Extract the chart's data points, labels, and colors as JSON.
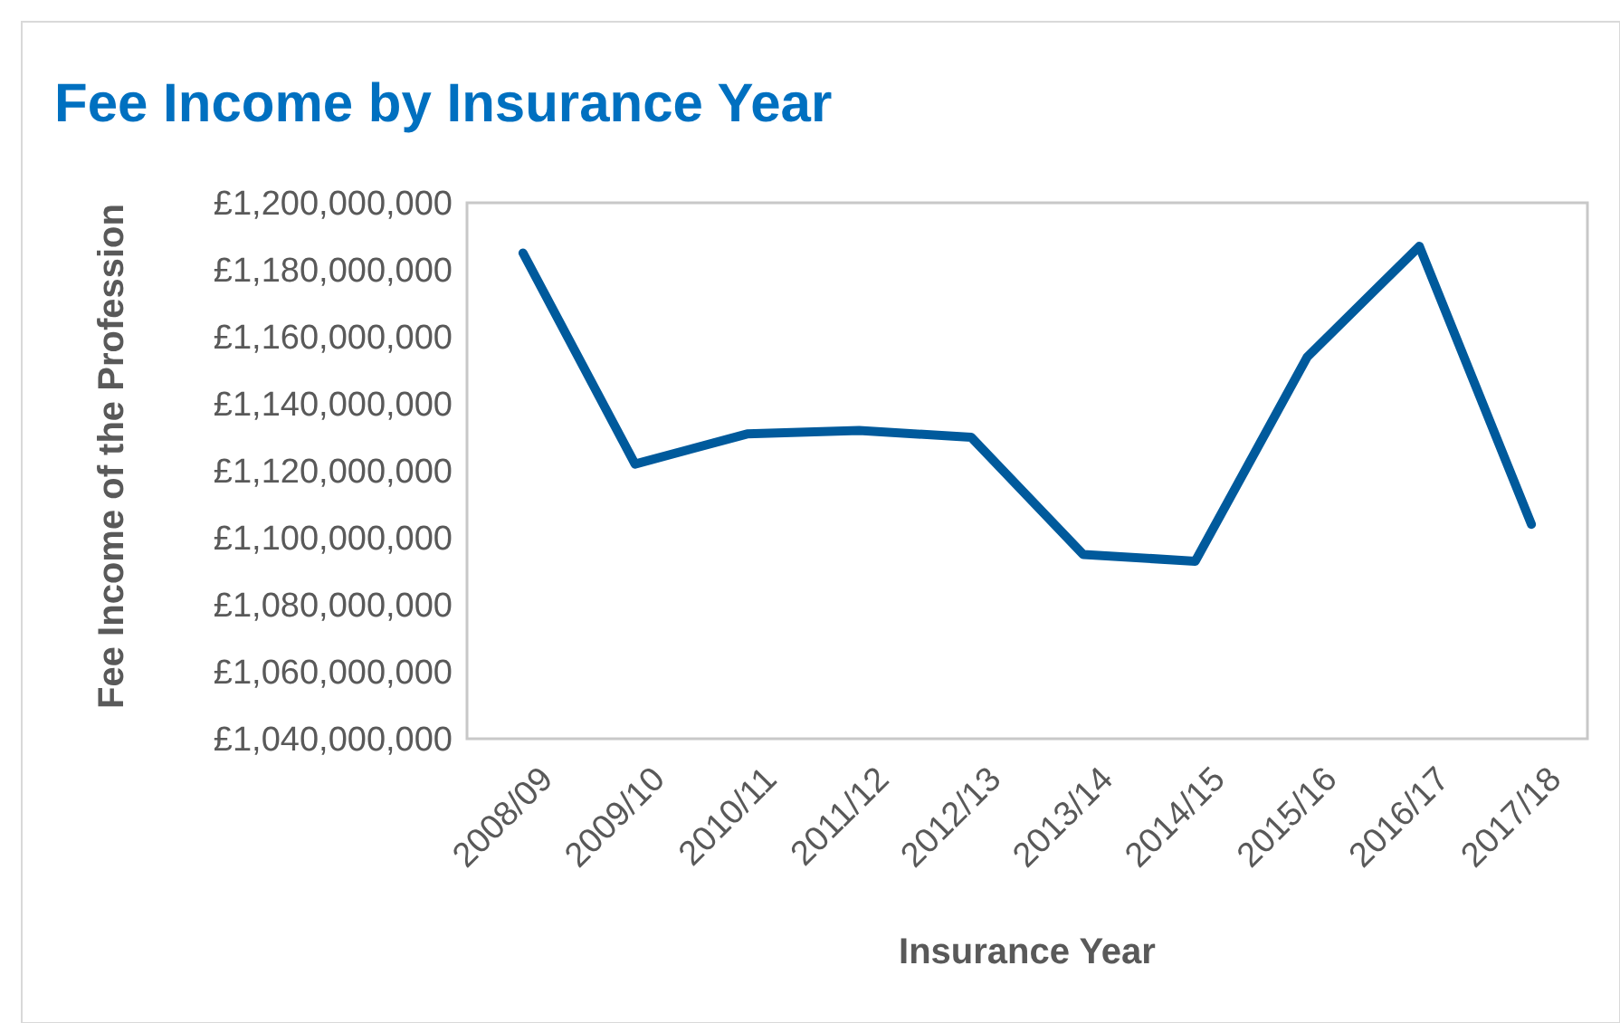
{
  "chart_data": {
    "type": "line",
    "title": "Fee Income by Insurance Year",
    "xlabel": "Insurance Year",
    "ylabel": "Fee Income of the Profession",
    "categories": [
      "2008/09",
      "2009/10",
      "2010/11",
      "2011/12",
      "2012/13",
      "2013/14",
      "2014/15",
      "2015/16",
      "2016/17",
      "2017/18"
    ],
    "series": [
      {
        "color": "#005a9c",
        "values": [
          1185000000,
          1122000000,
          1131000000,
          1132000000,
          1130000000,
          1095000000,
          1093000000,
          1154000000,
          1187000000,
          1104000000
        ]
      }
    ],
    "ylim": [
      1040000000,
      1200000000
    ],
    "yticks": [
      {
        "value": 1040000000,
        "label": "£1,040,000,000"
      },
      {
        "value": 1060000000,
        "label": "£1,060,000,000"
      },
      {
        "value": 1080000000,
        "label": "£1,080,000,000"
      },
      {
        "value": 1100000000,
        "label": "£1,100,000,000"
      },
      {
        "value": 1120000000,
        "label": "£1,120,000,000"
      },
      {
        "value": 1140000000,
        "label": "£1,140,000,000"
      },
      {
        "value": 1160000000,
        "label": "£1,160,000,000"
      },
      {
        "value": 1180000000,
        "label": "£1,180,000,000"
      },
      {
        "value": 1200000000,
        "label": "£1,200,000,000"
      }
    ],
    "grid": false
  }
}
